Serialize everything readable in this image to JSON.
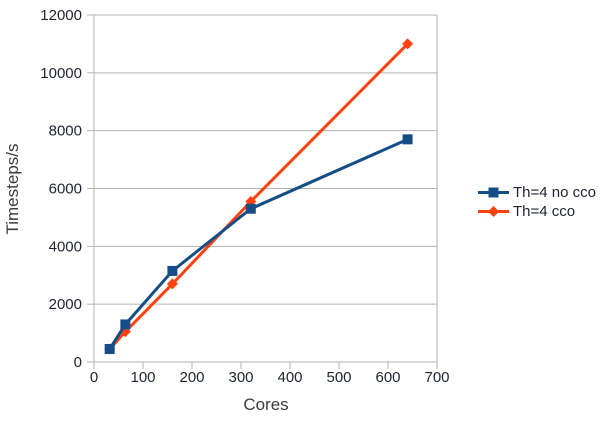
{
  "chart_data": {
    "type": "line",
    "title": "",
    "xlabel": "Cores",
    "ylabel": "Timesteps/s",
    "x": [
      32,
      64,
      160,
      320,
      640
    ],
    "series": [
      {
        "name": "Th=4 no cco",
        "color": "#154e87",
        "marker": "square",
        "values": [
          450,
          1300,
          3150,
          5300,
          7700
        ]
      },
      {
        "name": "Th=4 cco",
        "color": "#ff420e",
        "marker": "diamond",
        "values": [
          450,
          1050,
          2700,
          5550,
          11000
        ]
      }
    ],
    "xlim": [
      0,
      700
    ],
    "ylim": [
      0,
      12000
    ],
    "x_ticks": [
      0,
      100,
      200,
      300,
      400,
      500,
      600,
      700
    ],
    "y_ticks": [
      0,
      2000,
      4000,
      6000,
      8000,
      10000,
      12000
    ],
    "grid": "horizontal-only",
    "legend_position": "right",
    "colors": {
      "gridline": "#b3b3b3",
      "axis": "#b3b3b3",
      "tick_label": "#1f2430",
      "axis_title": "#3c3c3c",
      "background": "#ffffff"
    }
  }
}
